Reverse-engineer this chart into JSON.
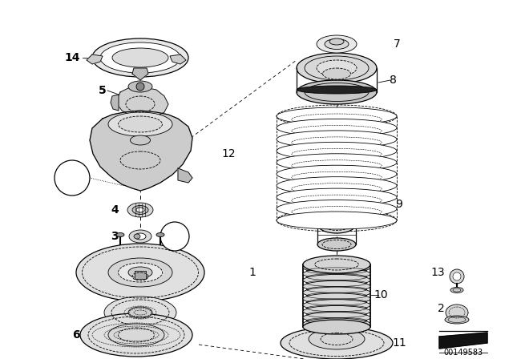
{
  "bg_color": "#ffffff",
  "fig_width": 6.4,
  "fig_height": 4.48,
  "dpi": 100,
  "watermark": "00149583",
  "line_color": "#000000",
  "label_fontsize": 9,
  "label_fontsize_bold": 9
}
